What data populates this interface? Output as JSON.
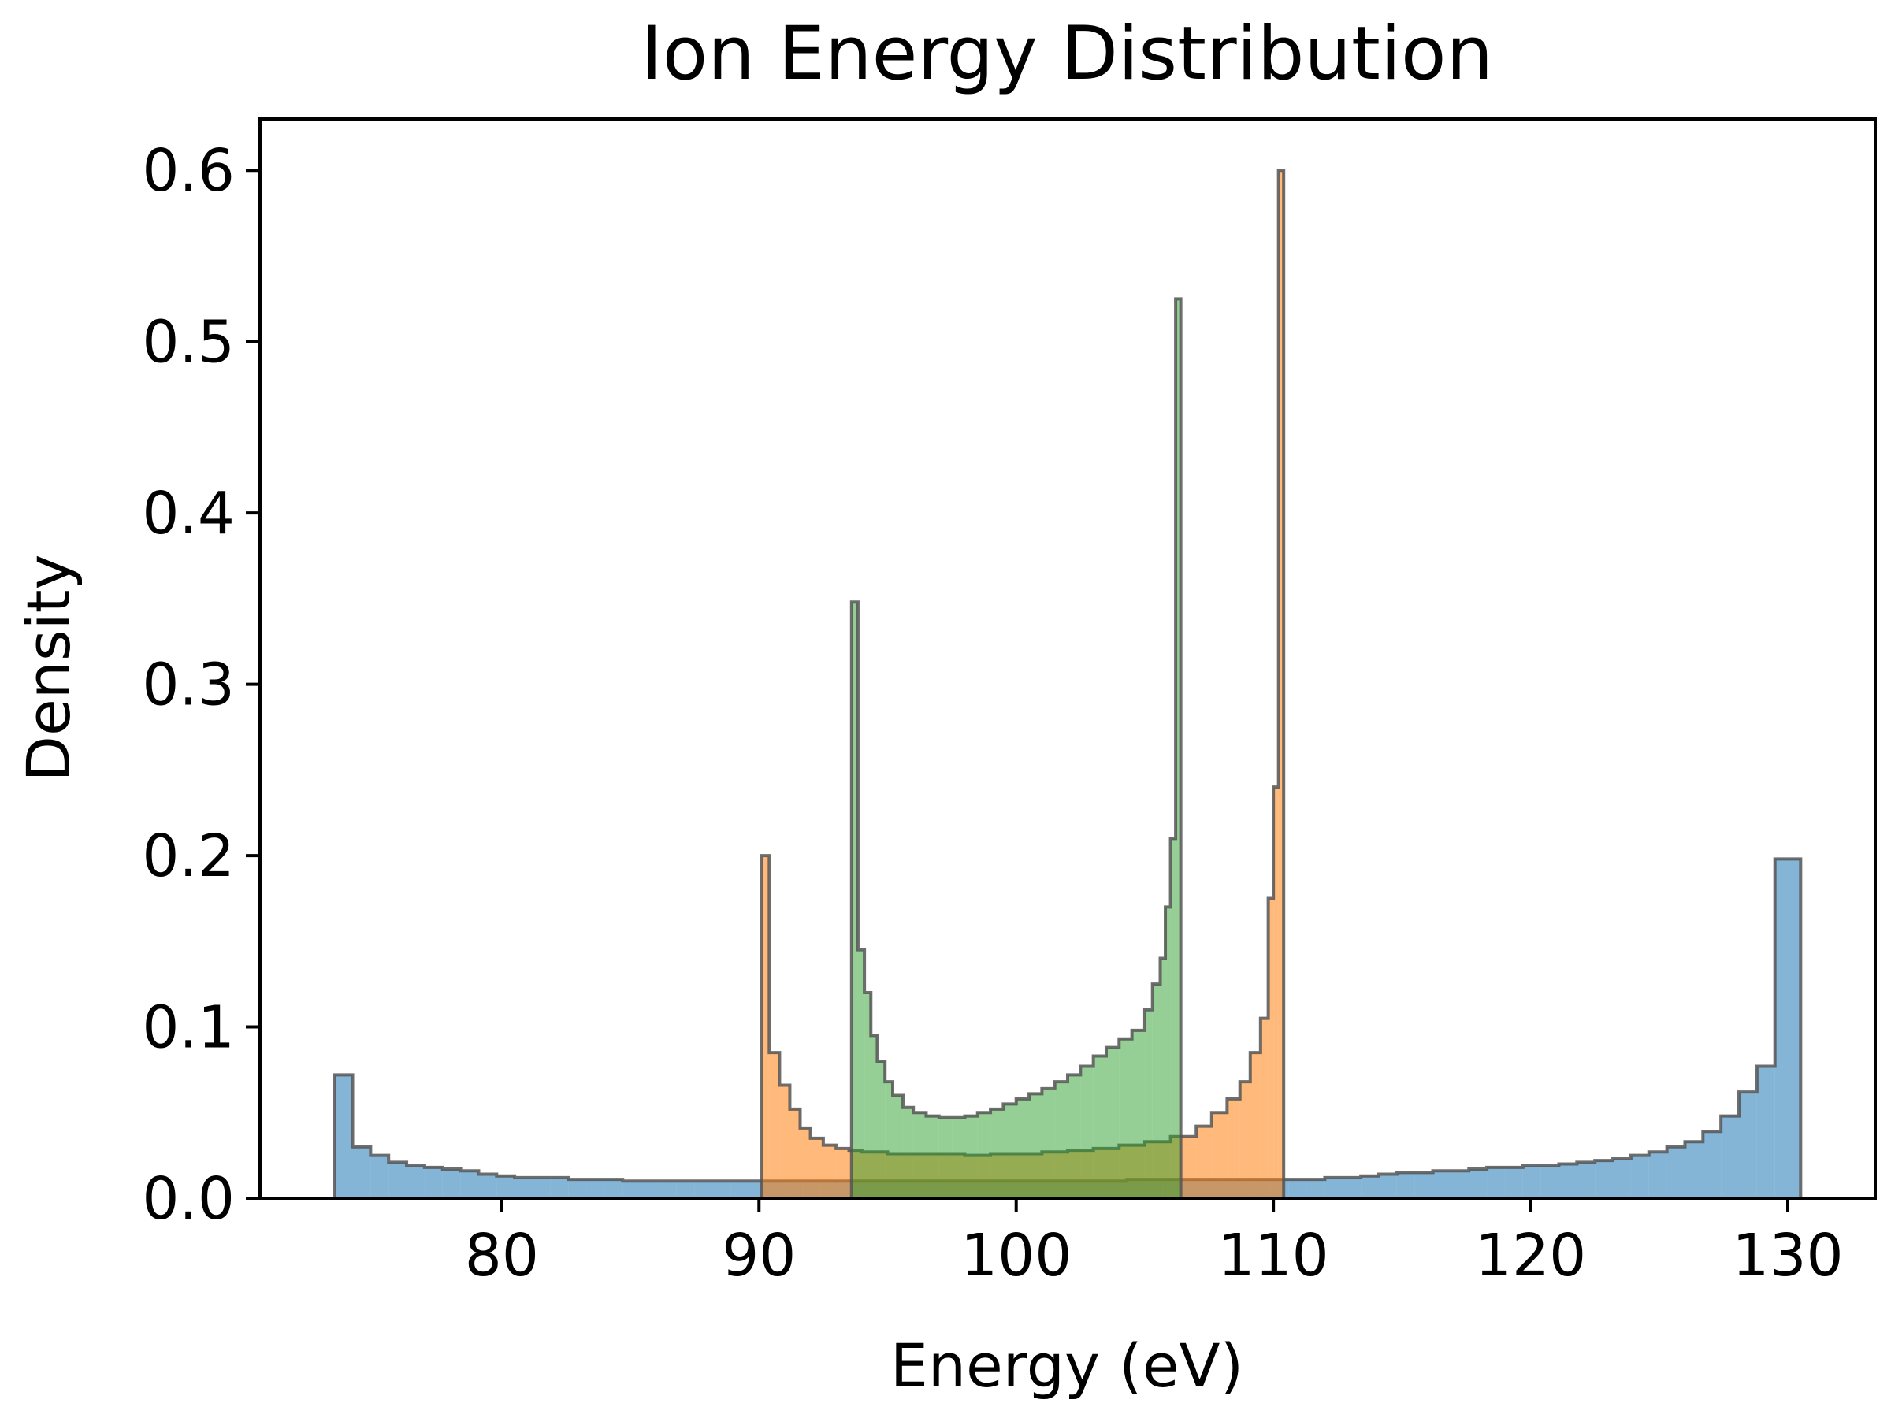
{
  "chart_data": {
    "type": "histogram",
    "title": "Ion Energy Distribution",
    "xlabel": "Energy (eV)",
    "ylabel": "Density",
    "xlim": [
      70.6,
      133.4
    ],
    "ylim": [
      0,
      0.63
    ],
    "xticks": [
      "80",
      "90",
      "100",
      "110",
      "120",
      "130"
    ],
    "xtick_values": [
      80,
      90,
      100,
      110,
      120,
      130
    ],
    "yticks": [
      "0.0",
      "0.1",
      "0.2",
      "0.3",
      "0.4",
      "0.5",
      "0.6"
    ],
    "ytick_values": [
      0.0,
      0.1,
      0.2,
      0.3,
      0.4,
      0.5,
      0.6
    ],
    "grid": false,
    "legend": false,
    "edge_color": "#555555",
    "series": [
      {
        "color": "#1f77b4",
        "opacity": 0.55,
        "edges": [
          73.5,
          74.2,
          74.9,
          75.6,
          76.3,
          77.0,
          77.7,
          78.4,
          79.1,
          79.8,
          80.5,
          81.2,
          81.9,
          82.6,
          83.3,
          84.0,
          84.7,
          85.4,
          86.1,
          86.8,
          87.5,
          88.2,
          88.9,
          89.6,
          90.3,
          91.0,
          91.7,
          92.4,
          93.1,
          93.8,
          94.5,
          95.2,
          95.9,
          96.6,
          97.3,
          98.0,
          98.7,
          99.4,
          100.1,
          100.8,
          101.5,
          102.2,
          102.9,
          103.6,
          104.3,
          105.0,
          105.7,
          106.4,
          107.1,
          107.8,
          108.5,
          109.2,
          109.9,
          110.6,
          111.3,
          112.0,
          112.7,
          113.4,
          114.1,
          114.8,
          115.5,
          116.2,
          116.9,
          117.6,
          118.3,
          119.0,
          119.7,
          120.4,
          121.1,
          121.8,
          122.5,
          123.2,
          123.9,
          124.6,
          125.3,
          126.0,
          126.7,
          127.4,
          128.1,
          128.8,
          129.5,
          130.5
        ],
        "values": [
          0.072,
          0.03,
          0.025,
          0.021,
          0.019,
          0.018,
          0.017,
          0.016,
          0.014,
          0.013,
          0.012,
          0.012,
          0.012,
          0.011,
          0.011,
          0.011,
          0.01,
          0.01,
          0.01,
          0.01,
          0.01,
          0.01,
          0.01,
          0.01,
          0.01,
          0.01,
          0.01,
          0.01,
          0.01,
          0.01,
          0.01,
          0.01,
          0.01,
          0.01,
          0.01,
          0.01,
          0.01,
          0.01,
          0.01,
          0.01,
          0.01,
          0.01,
          0.01,
          0.01,
          0.011,
          0.011,
          0.011,
          0.011,
          0.011,
          0.011,
          0.011,
          0.011,
          0.011,
          0.011,
          0.011,
          0.012,
          0.012,
          0.013,
          0.014,
          0.015,
          0.015,
          0.016,
          0.016,
          0.017,
          0.018,
          0.018,
          0.019,
          0.019,
          0.02,
          0.021,
          0.022,
          0.023,
          0.025,
          0.027,
          0.03,
          0.033,
          0.039,
          0.048,
          0.062,
          0.077,
          0.198
        ]
      },
      {
        "color": "#ff7f0e",
        "opacity": 0.55,
        "edges": [
          90.1,
          90.4,
          90.8,
          91.2,
          91.6,
          92.0,
          92.5,
          93.0,
          93.5,
          94.0,
          95.0,
          96.0,
          97.0,
          98.0,
          99.0,
          100.0,
          101.0,
          102.0,
          103.0,
          104.0,
          105.0,
          106.0,
          107.0,
          107.6,
          108.2,
          108.7,
          109.1,
          109.5,
          109.8,
          110.0,
          110.2,
          110.4
        ],
        "values": [
          0.2,
          0.085,
          0.066,
          0.052,
          0.041,
          0.035,
          0.031,
          0.029,
          0.028,
          0.027,
          0.026,
          0.026,
          0.026,
          0.025,
          0.026,
          0.026,
          0.027,
          0.028,
          0.029,
          0.031,
          0.033,
          0.036,
          0.042,
          0.05,
          0.058,
          0.068,
          0.085,
          0.105,
          0.175,
          0.24,
          0.6
        ]
      },
      {
        "color": "#2ca02c",
        "opacity": 0.5,
        "edges": [
          93.6,
          93.85,
          94.1,
          94.35,
          94.6,
          94.9,
          95.2,
          95.6,
          96.0,
          96.5,
          97.0,
          97.5,
          98.0,
          98.5,
          99.0,
          99.5,
          100.0,
          100.5,
          101.0,
          101.5,
          102.0,
          102.5,
          103.0,
          103.5,
          104.0,
          104.5,
          105.0,
          105.3,
          105.6,
          105.8,
          106.0,
          106.2,
          106.4
        ],
        "values": [
          0.348,
          0.145,
          0.12,
          0.095,
          0.08,
          0.068,
          0.06,
          0.053,
          0.05,
          0.048,
          0.047,
          0.047,
          0.048,
          0.05,
          0.052,
          0.055,
          0.058,
          0.061,
          0.064,
          0.068,
          0.072,
          0.077,
          0.083,
          0.088,
          0.093,
          0.098,
          0.11,
          0.125,
          0.14,
          0.17,
          0.21,
          0.525
        ]
      }
    ]
  }
}
